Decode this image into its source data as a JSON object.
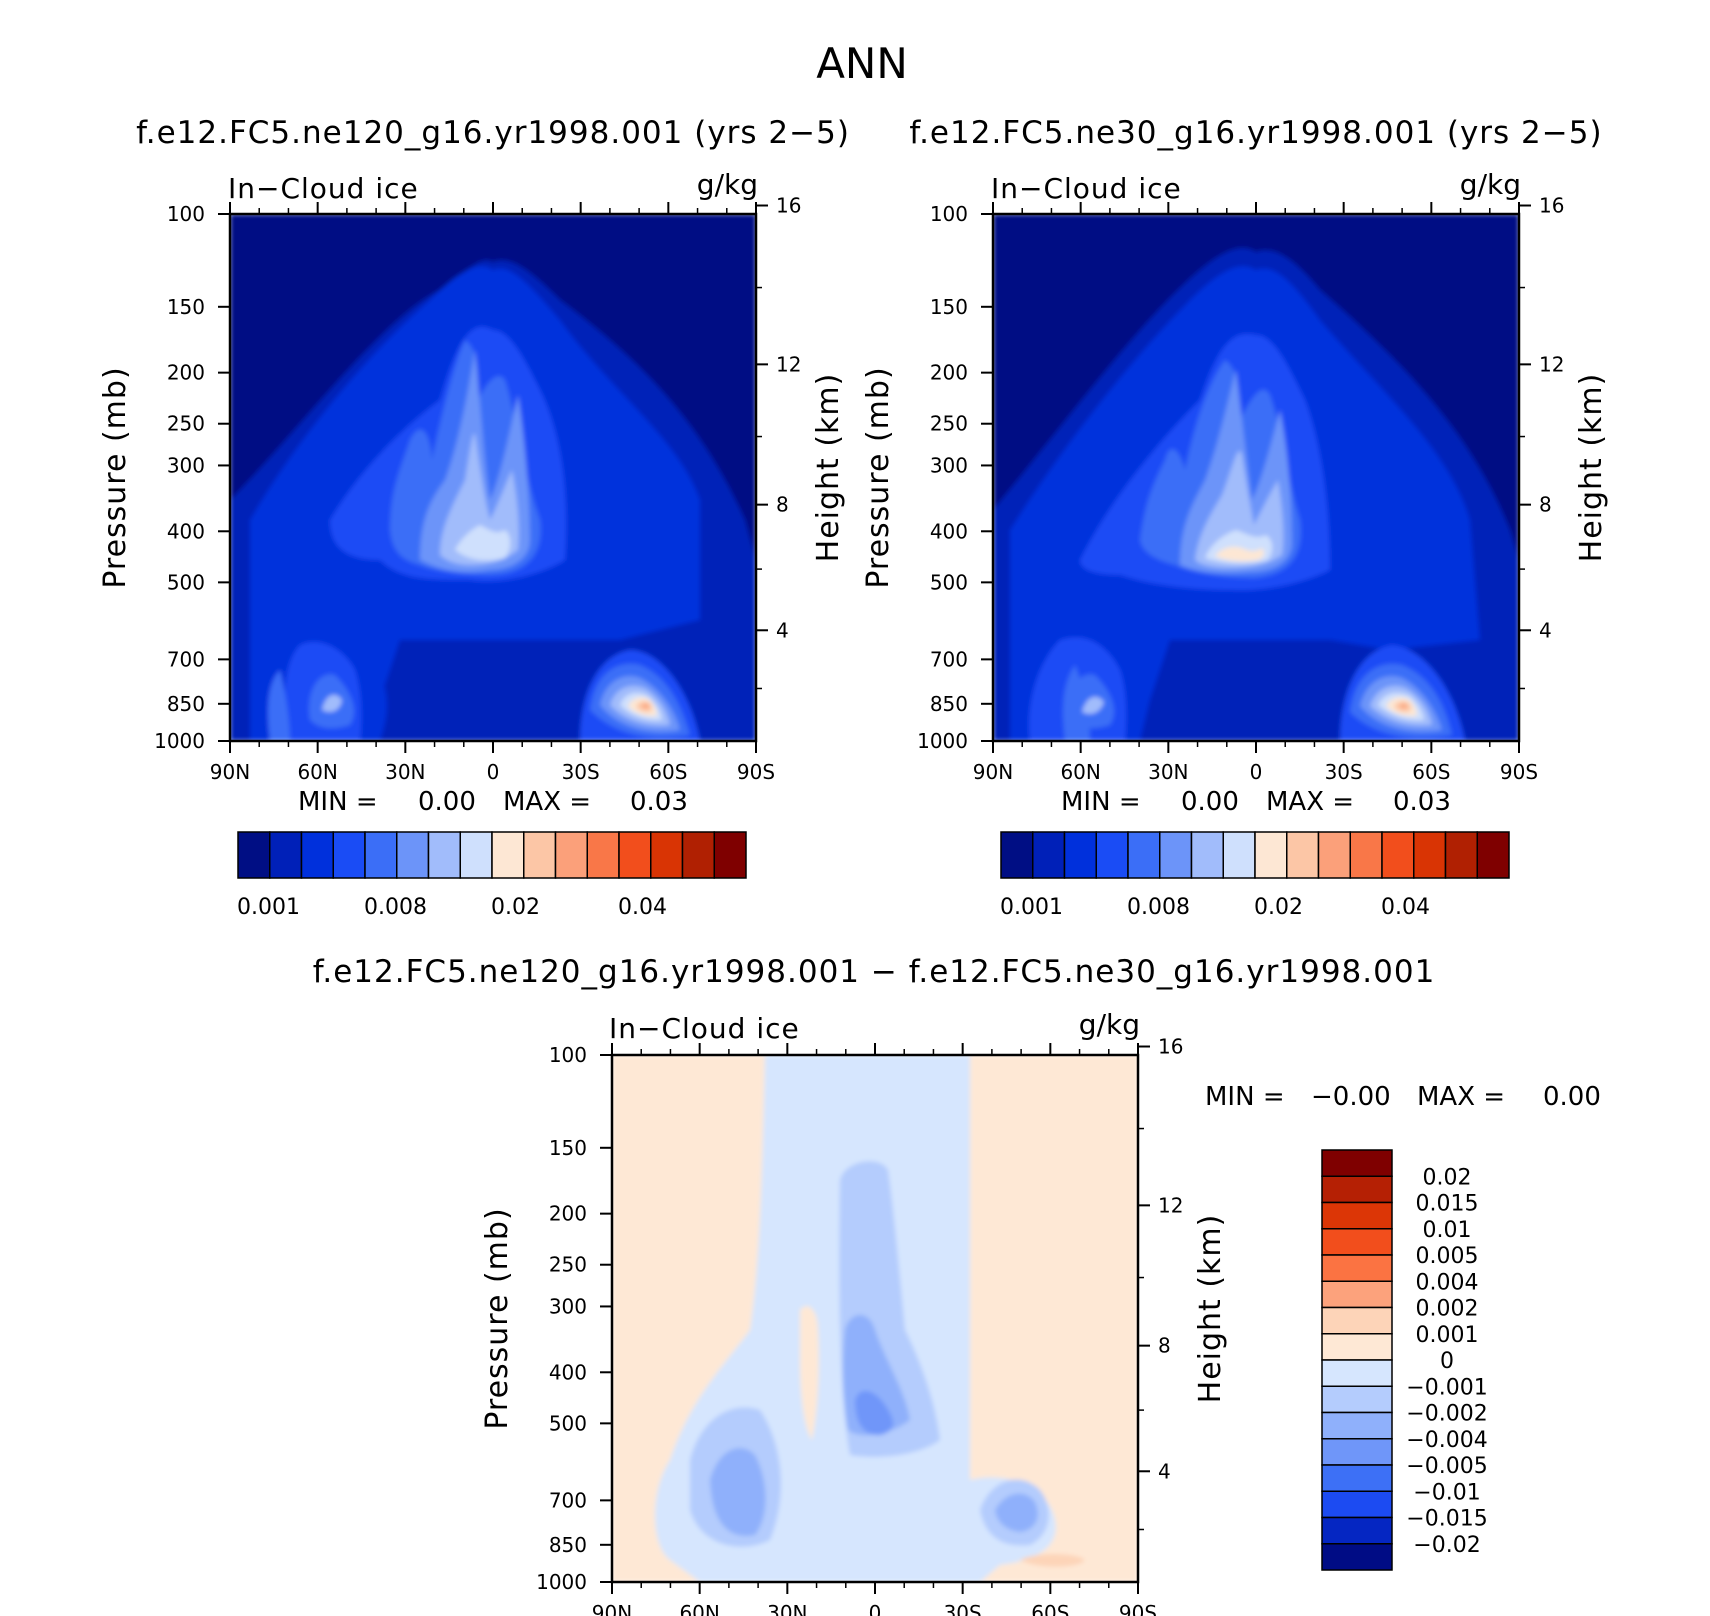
{
  "figure": {
    "title": "ANN"
  },
  "panels": {
    "left": {
      "case_title": "f.e12.FC5.ne120_g16.yr1998.001 (yrs 2−5)",
      "variable": "In−Cloud ice",
      "units": "g/kg",
      "min_label": "MIN =",
      "min_value": "0.00",
      "max_label": "MAX =",
      "max_value": "0.03"
    },
    "right": {
      "case_title": "f.e12.FC5.ne30_g16.yr1998.001 (yrs 2−5)",
      "variable": "In−Cloud ice",
      "units": "g/kg",
      "min_label": "MIN =",
      "min_value": "0.00",
      "max_label": "MAX =",
      "max_value": "0.03"
    },
    "diff": {
      "case_title": "f.e12.FC5.ne120_g16.yr1998.001 − f.e12.FC5.ne30_g16.yr1998.001",
      "variable": "In−Cloud ice",
      "units": "g/kg",
      "min_label": "MIN =",
      "min_value": "−0.00",
      "max_label": "MAX =",
      "max_value": "0.00"
    }
  },
  "chart_data": [
    {
      "type": "heatmap",
      "title": "f.e12.FC5.ne120_g16.yr1998.001 (yrs 2−5)",
      "variable": "In−Cloud ice",
      "units": "g/kg",
      "xlabel": "",
      "ylabel": "Pressure (mb)",
      "y2label": "Height (km)",
      "x_ticks": [
        "90N",
        "60N",
        "30N",
        "0",
        "30S",
        "60S",
        "90S"
      ],
      "y_ticks": [
        "100",
        "150",
        "200",
        "250",
        "300",
        "400",
        "500",
        "700",
        "850",
        "1000"
      ],
      "y2_ticks": [
        "16",
        "12",
        "8",
        "4"
      ],
      "y_scale": "log",
      "ylim": [
        1000,
        100
      ],
      "xlim": [
        90,
        -90
      ],
      "min": 0.0,
      "max": 0.03,
      "colorbar_labels": [
        "0.001",
        "0.008",
        "0.02",
        "0.04"
      ],
      "colors": [
        "#000e84",
        "#0020b8",
        "#0030dc",
        "#1a4cf5",
        "#3b6ef7",
        "#6c94f9",
        "#a1bcfb",
        "#cfe0fd",
        "#fde7d4",
        "#fcc6a6",
        "#fba07a",
        "#f97748",
        "#f24e1c",
        "#d93404",
        "#b02002",
        "#7f0000"
      ],
      "features": [
        {
          "name": "tropical-tower",
          "lat": 0,
          "top_hPa": 125,
          "peak_hPa": 500,
          "peak_value": 0.018
        },
        {
          "name": "sh-low-cloud-maximum",
          "lat": -57,
          "peak_hPa": 850,
          "peak_value": 0.03
        }
      ]
    },
    {
      "type": "heatmap",
      "title": "f.e12.FC5.ne30_g16.yr1998.001 (yrs 2−5)",
      "variable": "In−Cloud ice",
      "units": "g/kg",
      "xlabel": "",
      "ylabel": "Pressure (mb)",
      "y2label": "Height (km)",
      "x_ticks": [
        "90N",
        "60N",
        "30N",
        "0",
        "30S",
        "60S",
        "90S"
      ],
      "y_ticks": [
        "100",
        "150",
        "200",
        "250",
        "300",
        "400",
        "500",
        "700",
        "850",
        "1000"
      ],
      "y2_ticks": [
        "16",
        "12",
        "8",
        "4"
      ],
      "y_scale": "log",
      "ylim": [
        1000,
        100
      ],
      "xlim": [
        90,
        -90
      ],
      "min": 0.0,
      "max": 0.03,
      "colorbar_labels": [
        "0.001",
        "0.008",
        "0.02",
        "0.04"
      ],
      "colors": [
        "#000e84",
        "#0020b8",
        "#0030dc",
        "#1a4cf5",
        "#3b6ef7",
        "#6c94f9",
        "#a1bcfb",
        "#cfe0fd",
        "#fde7d4",
        "#fcc6a6",
        "#fba07a",
        "#f97748",
        "#f24e1c",
        "#d93404",
        "#b02002",
        "#7f0000"
      ],
      "features": [
        {
          "name": "tropical-tower",
          "lat": 0,
          "top_hPa": 120,
          "peak_hPa": 500,
          "peak_value": 0.02
        },
        {
          "name": "sh-low-cloud-maximum",
          "lat": -55,
          "peak_hPa": 850,
          "peak_value": 0.03
        }
      ]
    },
    {
      "type": "heatmap",
      "title": "f.e12.FC5.ne120_g16.yr1998.001 − f.e12.FC5.ne30_g16.yr1998.001",
      "variable": "In−Cloud ice",
      "units": "g/kg",
      "xlabel": "",
      "ylabel": "Pressure (mb)",
      "y2label": "Height (km)",
      "x_ticks": [
        "90N",
        "60N",
        "30N",
        "0",
        "30S",
        "60S",
        "90S"
      ],
      "y_ticks": [
        "100",
        "150",
        "200",
        "250",
        "300",
        "400",
        "500",
        "700",
        "850",
        "1000"
      ],
      "y2_ticks": [
        "16",
        "12",
        "8",
        "4"
      ],
      "y_scale": "log",
      "ylim": [
        1000,
        100
      ],
      "xlim": [
        90,
        -90
      ],
      "min": -0.0,
      "max": 0.0,
      "colorbar_labels": [
        "0.02",
        "0.015",
        "0.01",
        "0.005",
        "0.004",
        "0.002",
        "0.001",
        "0",
        "−0.001",
        "−0.002",
        "−0.004",
        "−0.005",
        "−0.01",
        "−0.015",
        "−0.02"
      ],
      "colors": [
        "#7f0000",
        "#b52004",
        "#dc3606",
        "#f24e1c",
        "#fb7342",
        "#fca27c",
        "#fdd4b8",
        "#fee8d5",
        "#d6e6fe",
        "#b4ccfd",
        "#8fb0fb",
        "#6f96f9",
        "#3d70f6",
        "#1c4bf2",
        "#0526c2",
        "#000c85"
      ]
    }
  ]
}
